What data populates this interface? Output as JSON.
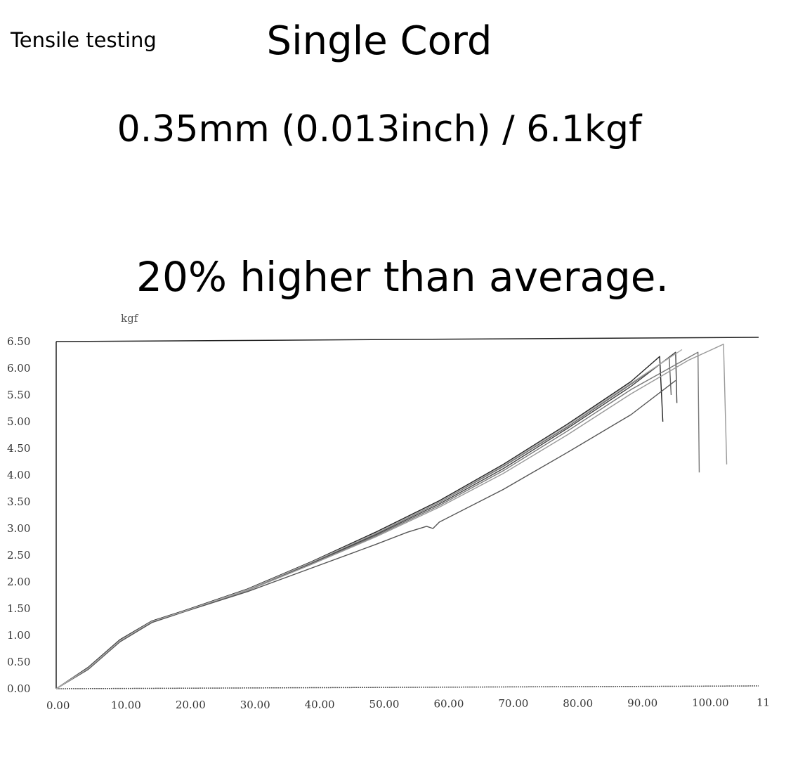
{
  "header": {
    "corner_label": "Tensile testing",
    "title": "Single Cord",
    "spec": "0.35mm (0.013inch) / 6.1kgf",
    "claim": "20% higher than average."
  },
  "chart_data": {
    "type": "line",
    "title": "",
    "xlabel": "",
    "ylabel": "kgf",
    "xlim": [
      0,
      110
    ],
    "ylim": [
      0,
      6.5
    ],
    "grid": false,
    "legend": "none",
    "x_ticks": [
      "0.00",
      "10.00",
      "20.00",
      "30.00",
      "40.00",
      "50.00",
      "60.00",
      "70.00",
      "80.00",
      "90.00",
      "100.00",
      "11"
    ],
    "y_ticks": [
      "0.00",
      "0.50",
      "1.00",
      "1.50",
      "2.00",
      "2.50",
      "3.00",
      "3.50",
      "4.00",
      "4.50",
      "5.00",
      "5.50",
      "6.00",
      "6.50"
    ],
    "series": [
      {
        "color": "#222222",
        "x": [
          0,
          5,
          10,
          15,
          20,
          30,
          40,
          50,
          60,
          70,
          80,
          90,
          94.5,
          95
        ],
        "y": [
          0,
          0.4,
          0.92,
          1.27,
          1.46,
          1.87,
          2.38,
          2.93,
          3.52,
          4.2,
          4.95,
          5.75,
          6.22,
          5.0
        ]
      },
      {
        "color": "#444444",
        "x": [
          0,
          5,
          10,
          15,
          20,
          30,
          40,
          50,
          60,
          70,
          80,
          90,
          97,
          97.2
        ],
        "y": [
          0,
          0.38,
          0.9,
          1.25,
          1.45,
          1.85,
          2.35,
          2.88,
          3.46,
          4.12,
          4.87,
          5.66,
          6.3,
          5.35
        ]
      },
      {
        "color": "#666666",
        "x": [
          0,
          5,
          10,
          15,
          20,
          30,
          40,
          50,
          60,
          70,
          80,
          90,
          96,
          96.3
        ],
        "y": [
          0,
          0.39,
          0.91,
          1.26,
          1.45,
          1.86,
          2.36,
          2.9,
          3.49,
          4.16,
          4.9,
          5.7,
          6.2,
          5.5
        ]
      },
      {
        "color": "#777777",
        "x": [
          0,
          5,
          10,
          15,
          20,
          30,
          40,
          50,
          60,
          70,
          80,
          90,
          100.5,
          100.7
        ],
        "y": [
          0,
          0.37,
          0.89,
          1.24,
          1.44,
          1.84,
          2.33,
          2.86,
          3.43,
          4.08,
          4.82,
          5.6,
          6.3,
          4.05
        ]
      },
      {
        "color": "#999999",
        "x": [
          0,
          5,
          10,
          15,
          20,
          30,
          40,
          50,
          60,
          70,
          80,
          90,
          99,
          104.5,
          105
        ],
        "y": [
          0,
          0.37,
          0.88,
          1.24,
          1.44,
          1.84,
          2.33,
          2.84,
          3.4,
          4.03,
          4.75,
          5.52,
          6.15,
          6.45,
          4.2
        ]
      },
      {
        "color": "#555555",
        "x": [
          0,
          5,
          10,
          15,
          20,
          30,
          40,
          50,
          55,
          58,
          59,
          60,
          70,
          80,
          90,
          97
        ],
        "y": [
          0,
          0.36,
          0.88,
          1.24,
          1.44,
          1.82,
          2.26,
          2.7,
          2.93,
          3.04,
          3.0,
          3.12,
          3.73,
          4.42,
          5.13,
          5.77
        ]
      },
      {
        "color": "#aaaaaa",
        "x": [
          0,
          5,
          10,
          15,
          20,
          30,
          40,
          50,
          60,
          70,
          80,
          90,
          98
        ],
        "y": [
          0,
          0.38,
          0.9,
          1.26,
          1.45,
          1.86,
          2.37,
          2.91,
          3.5,
          4.18,
          4.93,
          5.72,
          6.35
        ]
      }
    ]
  }
}
